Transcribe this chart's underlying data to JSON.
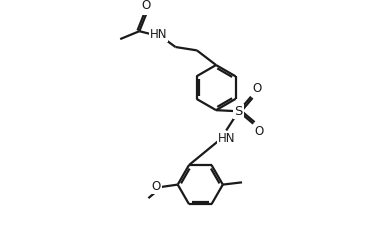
{
  "bg_color": "#ffffff",
  "line_color": "#1a1a1a",
  "line_width": 1.6,
  "font_size": 8.5,
  "figsize": [
    3.87,
    2.41
  ],
  "dpi": 100,
  "xlim": [
    0,
    11
  ],
  "ylim": [
    -5.5,
    4.5
  ]
}
